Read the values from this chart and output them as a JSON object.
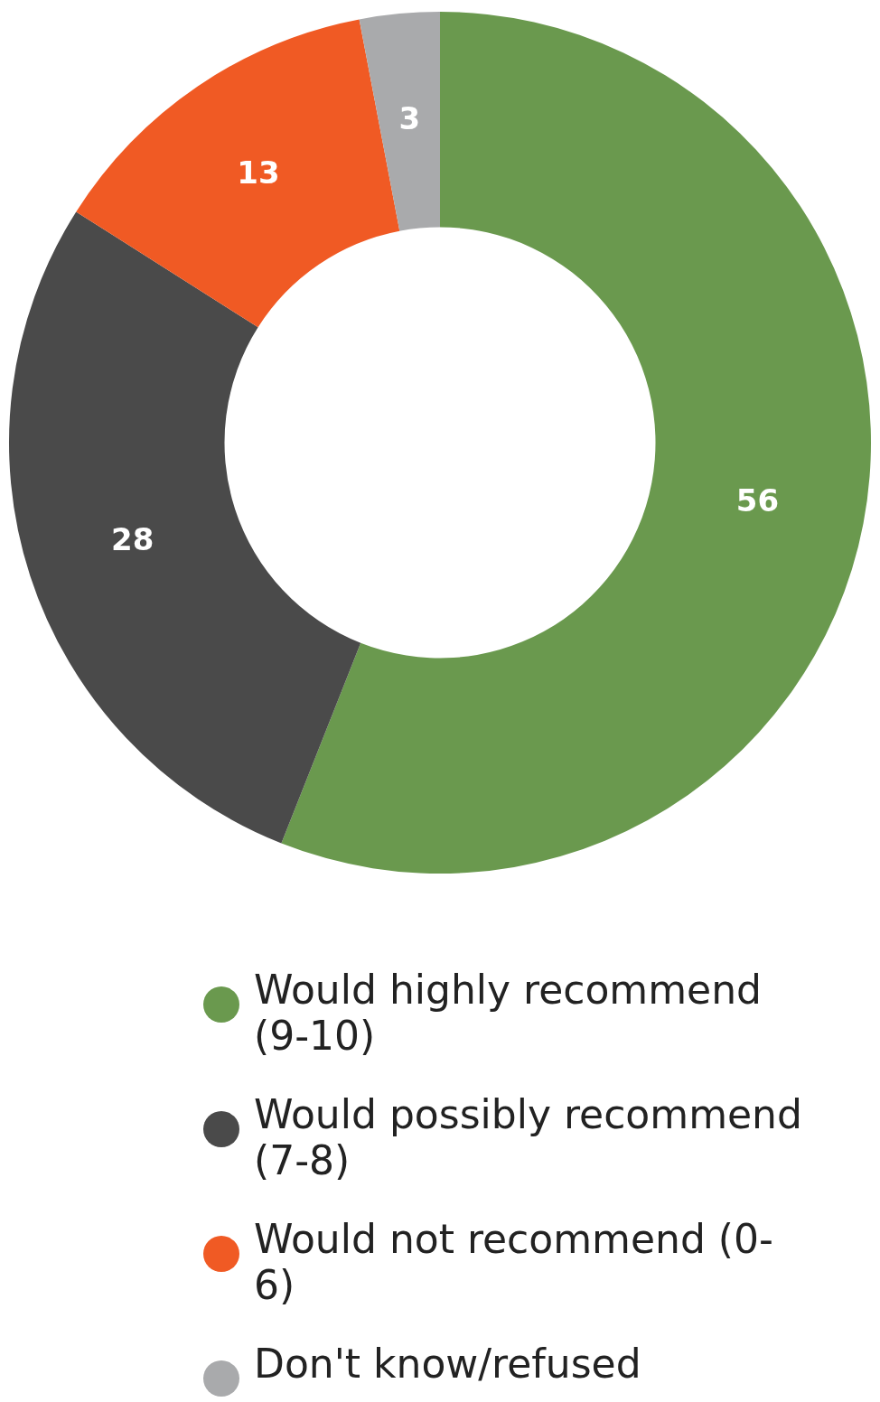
{
  "chart_data": {
    "type": "donut",
    "categories": [
      "Would highly recommend (9-10)",
      "Would possibly recommend (7-8)",
      "Would not recommend (0-6)",
      "Don't know/refused"
    ],
    "values": [
      56,
      28,
      13,
      3
    ],
    "colors": [
      "#6a994e",
      "#4a4a4a",
      "#f05a24",
      "#a9aaac"
    ],
    "data_labels": true,
    "legend": "bottom"
  }
}
